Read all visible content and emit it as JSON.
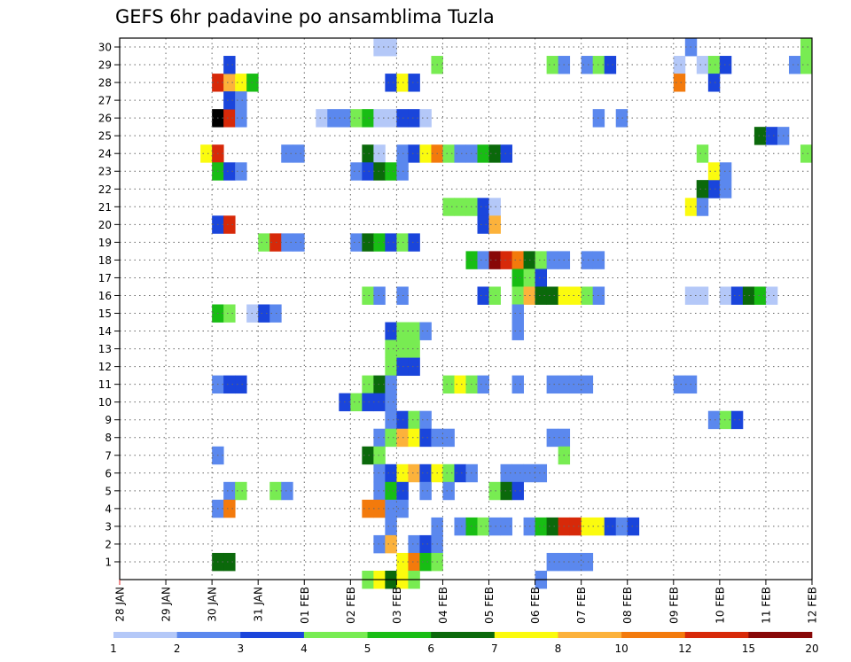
{
  "chart_data": {
    "type": "heatmap",
    "title": "GEFS 6hr padavine po ansamblima Tuzla",
    "xlabel": "",
    "ylabel": "",
    "grid": true,
    "x_ticks": [
      "28 JAN",
      "29 JAN",
      "30 JAN",
      "31 JAN",
      "01 FEB",
      "02 FEB",
      "03 FEB",
      "04 FEB",
      "05 FEB",
      "06 FEB",
      "07 FEB",
      "08 FEB",
      "09 FEB",
      "10 FEB",
      "11 FEB",
      "12 FEB"
    ],
    "y_ticks": [
      1,
      2,
      3,
      4,
      5,
      6,
      7,
      8,
      9,
      10,
      11,
      12,
      13,
      14,
      15,
      16,
      17,
      18,
      19,
      20,
      21,
      22,
      23,
      24,
      25,
      26,
      27,
      28,
      29,
      30
    ],
    "x_unit": "6-hour step from 28 JAN 00Z",
    "levels": [
      1,
      2,
      3,
      4,
      5,
      6,
      7,
      8,
      10,
      12,
      15,
      20
    ],
    "level_labels": [
      "1",
      "2",
      "3",
      "4",
      "5",
      "6",
      "7",
      "8",
      "10",
      "12",
      "15",
      "20"
    ],
    "colors": [
      "#b4c8f8",
      "#5b88ee",
      "#1a45db",
      "#78ec52",
      "#18bd14",
      "#0b690b",
      "#fbfb0e",
      "#fcb23b",
      "#f37a0c",
      "#d72909",
      "#880808"
    ],
    "cells": [
      [
        8,
        28,
        9
      ],
      [
        9,
        28,
        7
      ],
      [
        10,
        28,
        6
      ],
      [
        11,
        28,
        4
      ],
      [
        8,
        26,
        11
      ],
      [
        9,
        26,
        9
      ],
      [
        10,
        26,
        1
      ],
      [
        7,
        24,
        6
      ],
      [
        8,
        24,
        9
      ],
      [
        8,
        23,
        4
      ],
      [
        9,
        23,
        2
      ],
      [
        10,
        23,
        1
      ],
      [
        8,
        20,
        2
      ],
      [
        9,
        20,
        9
      ],
      [
        9,
        29,
        2
      ],
      [
        9,
        27,
        2
      ],
      [
        10,
        27,
        1
      ],
      [
        8,
        15,
        4
      ],
      [
        9,
        15,
        3
      ],
      [
        11,
        15,
        0
      ],
      [
        12,
        15,
        2
      ],
      [
        13,
        15,
        1
      ],
      [
        8,
        11,
        1
      ],
      [
        9,
        11,
        2
      ],
      [
        10,
        11,
        2
      ],
      [
        8,
        7,
        1
      ],
      [
        9,
        5,
        1
      ],
      [
        10,
        5,
        3
      ],
      [
        13,
        5,
        3
      ],
      [
        14,
        5,
        1
      ],
      [
        8,
        4,
        1
      ],
      [
        9,
        4,
        8
      ],
      [
        8,
        1,
        5
      ],
      [
        9,
        1,
        5
      ],
      [
        14,
        24,
        1
      ],
      [
        15,
        24,
        1
      ],
      [
        12,
        19,
        3
      ],
      [
        13,
        19,
        9
      ],
      [
        14,
        19,
        1
      ],
      [
        15,
        19,
        1
      ],
      [
        17,
        26,
        0
      ],
      [
        18,
        26,
        1
      ],
      [
        19,
        26,
        1
      ],
      [
        20,
        26,
        3
      ],
      [
        21,
        26,
        4
      ],
      [
        22,
        26,
        0
      ],
      [
        23,
        26,
        0
      ],
      [
        24,
        26,
        2
      ],
      [
        25,
        26,
        2
      ],
      [
        26,
        26,
        0
      ],
      [
        22,
        30,
        0
      ],
      [
        23,
        30,
        0
      ],
      [
        23,
        28,
        2
      ],
      [
        24,
        28,
        6
      ],
      [
        25,
        28,
        2
      ],
      [
        21,
        24,
        5
      ],
      [
        22,
        24,
        0
      ],
      [
        24,
        24,
        1
      ],
      [
        25,
        24,
        2
      ],
      [
        26,
        24,
        6
      ],
      [
        27,
        24,
        8
      ],
      [
        28,
        24,
        3
      ],
      [
        29,
        24,
        1
      ],
      [
        30,
        24,
        1
      ],
      [
        31,
        24,
        4
      ],
      [
        32,
        24,
        5
      ],
      [
        33,
        24,
        2
      ],
      [
        20,
        23,
        1
      ],
      [
        21,
        23,
        2
      ],
      [
        22,
        23,
        5
      ],
      [
        23,
        23,
        4
      ],
      [
        24,
        23,
        1
      ],
      [
        20,
        19,
        1
      ],
      [
        21,
        19,
        5
      ],
      [
        22,
        19,
        4
      ],
      [
        23,
        19,
        2
      ],
      [
        24,
        19,
        3
      ],
      [
        25,
        19,
        2
      ],
      [
        21,
        16,
        3
      ],
      [
        22,
        16,
        1
      ],
      [
        24,
        16,
        1
      ],
      [
        23,
        14,
        2
      ],
      [
        24,
        14,
        3
      ],
      [
        25,
        14,
        3
      ],
      [
        26,
        14,
        1
      ],
      [
        23,
        13,
        3
      ],
      [
        24,
        13,
        3
      ],
      [
        25,
        13,
        3
      ],
      [
        23,
        12,
        3
      ],
      [
        24,
        12,
        2
      ],
      [
        25,
        12,
        2
      ],
      [
        21,
        11,
        3
      ],
      [
        22,
        11,
        5
      ],
      [
        23,
        11,
        1
      ],
      [
        19,
        10,
        2
      ],
      [
        20,
        10,
        3
      ],
      [
        21,
        10,
        2
      ],
      [
        22,
        10,
        2
      ],
      [
        23,
        10,
        1
      ],
      [
        23,
        9,
        1
      ],
      [
        24,
        9,
        2
      ],
      [
        25,
        9,
        3
      ],
      [
        26,
        9,
        1
      ],
      [
        22,
        8,
        1
      ],
      [
        23,
        8,
        3
      ],
      [
        24,
        8,
        7
      ],
      [
        25,
        8,
        6
      ],
      [
        26,
        8,
        2
      ],
      [
        27,
        8,
        1
      ],
      [
        28,
        8,
        1
      ],
      [
        21,
        7,
        5
      ],
      [
        22,
        7,
        3
      ],
      [
        22,
        6,
        1
      ],
      [
        23,
        6,
        2
      ],
      [
        24,
        6,
        6
      ],
      [
        25,
        6,
        7
      ],
      [
        26,
        6,
        2
      ],
      [
        27,
        6,
        6
      ],
      [
        28,
        6,
        3
      ],
      [
        29,
        6,
        2
      ],
      [
        30,
        6,
        1
      ],
      [
        22,
        5,
        1
      ],
      [
        23,
        5,
        4
      ],
      [
        24,
        5,
        2
      ],
      [
        26,
        5,
        1
      ],
      [
        28,
        5,
        1
      ],
      [
        21,
        4,
        8
      ],
      [
        22,
        4,
        8
      ],
      [
        23,
        4,
        1
      ],
      [
        24,
        4,
        1
      ],
      [
        23,
        3,
        1
      ],
      [
        22,
        2,
        1
      ],
      [
        23,
        2,
        7
      ],
      [
        25,
        2,
        1
      ],
      [
        26,
        2,
        2
      ],
      [
        27,
        2,
        1
      ],
      [
        24,
        1,
        6
      ],
      [
        25,
        1,
        8
      ],
      [
        26,
        1,
        4
      ],
      [
        27,
        1,
        3
      ],
      [
        21,
        0,
        3
      ],
      [
        22,
        0,
        6
      ],
      [
        23,
        0,
        5
      ],
      [
        24,
        0,
        6
      ],
      [
        25,
        0,
        3
      ],
      [
        27,
        29,
        3
      ],
      [
        28,
        21,
        3
      ],
      [
        29,
        21,
        3
      ],
      [
        30,
        21,
        3
      ],
      [
        31,
        21,
        2
      ],
      [
        32,
        21,
        0
      ],
      [
        31,
        20,
        2
      ],
      [
        32,
        20,
        7
      ],
      [
        30,
        18,
        4
      ],
      [
        31,
        18,
        1
      ],
      [
        32,
        18,
        10
      ],
      [
        33,
        18,
        9
      ],
      [
        34,
        18,
        8
      ],
      [
        35,
        18,
        5
      ],
      [
        36,
        18,
        3
      ],
      [
        37,
        18,
        1
      ],
      [
        38,
        18,
        1
      ],
      [
        40,
        18,
        1
      ],
      [
        41,
        18,
        1
      ],
      [
        34,
        17,
        4
      ],
      [
        35,
        17,
        3
      ],
      [
        36,
        17,
        2
      ],
      [
        31,
        16,
        2
      ],
      [
        32,
        16,
        3
      ],
      [
        34,
        16,
        3
      ],
      [
        35,
        16,
        7
      ],
      [
        36,
        16,
        5
      ],
      [
        37,
        16,
        5
      ],
      [
        38,
        16,
        6
      ],
      [
        39,
        16,
        6
      ],
      [
        40,
        16,
        3
      ],
      [
        41,
        16,
        1
      ],
      [
        34,
        15,
        1
      ],
      [
        34,
        14,
        1
      ],
      [
        28,
        11,
        3
      ],
      [
        29,
        11,
        6
      ],
      [
        30,
        11,
        3
      ],
      [
        31,
        11,
        1
      ],
      [
        34,
        11,
        1
      ],
      [
        37,
        11,
        1
      ],
      [
        38,
        11,
        1
      ],
      [
        39,
        11,
        1
      ],
      [
        40,
        11,
        1
      ],
      [
        37,
        8,
        1
      ],
      [
        38,
        8,
        1
      ],
      [
        38,
        7,
        3
      ],
      [
        33,
        6,
        1
      ],
      [
        34,
        6,
        1
      ],
      [
        35,
        6,
        1
      ],
      [
        36,
        6,
        1
      ],
      [
        32,
        5,
        3
      ],
      [
        33,
        5,
        5
      ],
      [
        34,
        5,
        2
      ],
      [
        27,
        3,
        1
      ],
      [
        29,
        3,
        1
      ],
      [
        30,
        3,
        4
      ],
      [
        31,
        3,
        3
      ],
      [
        32,
        3,
        1
      ],
      [
        33,
        3,
        1
      ],
      [
        35,
        3,
        1
      ],
      [
        36,
        3,
        4
      ],
      [
        37,
        3,
        5
      ],
      [
        38,
        3,
        9
      ],
      [
        39,
        3,
        9
      ],
      [
        40,
        3,
        6
      ],
      [
        41,
        3,
        6
      ],
      [
        42,
        3,
        2
      ],
      [
        43,
        3,
        1
      ],
      [
        44,
        3,
        2
      ],
      [
        37,
        1,
        1
      ],
      [
        38,
        1,
        1
      ],
      [
        39,
        1,
        1
      ],
      [
        40,
        1,
        1
      ],
      [
        36,
        0,
        1
      ],
      [
        37,
        29,
        3
      ],
      [
        38,
        29,
        1
      ],
      [
        40,
        29,
        1
      ],
      [
        41,
        29,
        3
      ],
      [
        42,
        29,
        2
      ],
      [
        41,
        26,
        1
      ],
      [
        43,
        26,
        1
      ],
      [
        49,
        30,
        1
      ],
      [
        48,
        29,
        0
      ],
      [
        50,
        29,
        0
      ],
      [
        51,
        29,
        3
      ],
      [
        52,
        29,
        2
      ],
      [
        48,
        28,
        8
      ],
      [
        51,
        28,
        2
      ],
      [
        50,
        24,
        3
      ],
      [
        51,
        23,
        6
      ],
      [
        52,
        23,
        1
      ],
      [
        50,
        22,
        5
      ],
      [
        51,
        22,
        2
      ],
      [
        52,
        22,
        1
      ],
      [
        50,
        22,
        5
      ],
      [
        49,
        21,
        6
      ],
      [
        50,
        21,
        1
      ],
      [
        49,
        16,
        0
      ],
      [
        50,
        16,
        0
      ],
      [
        52,
        16,
        0
      ],
      [
        53,
        16,
        2
      ],
      [
        54,
        16,
        5
      ],
      [
        55,
        16,
        4
      ],
      [
        56,
        16,
        0
      ],
      [
        48,
        11,
        1
      ],
      [
        49,
        11,
        1
      ],
      [
        51,
        9,
        1
      ],
      [
        52,
        9,
        3
      ],
      [
        53,
        9,
        2
      ],
      [
        59,
        30,
        3
      ],
      [
        58,
        29,
        1
      ],
      [
        59,
        29,
        3
      ],
      [
        59,
        24,
        3
      ],
      [
        55,
        25,
        5
      ],
      [
        56,
        25,
        2
      ],
      [
        57,
        25,
        1
      ]
    ]
  }
}
